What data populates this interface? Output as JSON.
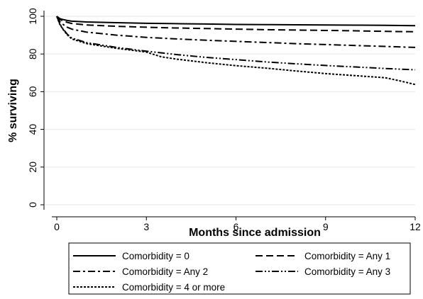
{
  "chart_data": {
    "type": "line",
    "title": "",
    "xlabel": "Months since admission",
    "ylabel": "% surviving",
    "xlim": [
      0,
      12
    ],
    "ylim": [
      0,
      100
    ],
    "xticks": [
      0,
      3,
      6,
      9,
      12
    ],
    "yticks": [
      0,
      20,
      40,
      60,
      80,
      100
    ],
    "grid": "horizontal",
    "legend_position": "bottom",
    "series": [
      {
        "name": "Comorbidity = 0",
        "dash": "solid",
        "x": [
          0,
          0.1,
          0.2,
          0.35,
          0.5,
          1,
          2,
          3,
          4,
          5,
          6,
          7,
          8,
          9,
          10,
          11,
          12
        ],
        "y": [
          100,
          98.8,
          98.3,
          97.8,
          97.4,
          97,
          96.6,
          96.3,
          96.1,
          95.9,
          95.7,
          95.6,
          95.5,
          95.4,
          95.3,
          95.2,
          95
        ]
      },
      {
        "name": "Comorbidity = Any 1",
        "dash": "dash",
        "x": [
          0,
          0.1,
          0.2,
          0.35,
          0.5,
          1,
          2,
          3,
          4,
          5,
          6,
          7,
          8,
          9,
          10,
          11,
          12
        ],
        "y": [
          100,
          98.4,
          97.6,
          96.8,
          96.2,
          95.4,
          94.7,
          94.2,
          93.8,
          93.5,
          93.2,
          92.9,
          92.7,
          92.5,
          92.3,
          92,
          91.8
        ]
      },
      {
        "name": "Comorbidity = Any 2",
        "dash": "dashdot",
        "x": [
          0,
          0.1,
          0.2,
          0.35,
          0.5,
          1,
          2,
          3,
          4,
          5,
          6,
          7,
          8,
          9,
          10,
          11,
          12
        ],
        "y": [
          100,
          97.2,
          95.8,
          94.2,
          93.2,
          91.6,
          90,
          88.8,
          88,
          87.3,
          86.7,
          86.1,
          85.5,
          85,
          84.5,
          84,
          83.5
        ]
      },
      {
        "name": "Comorbidity = Any 3",
        "dash": "dashdotdot",
        "x": [
          0,
          0.1,
          0.2,
          0.35,
          0.5,
          1,
          2,
          3,
          4,
          5,
          6,
          7,
          8,
          9,
          10,
          11,
          12
        ],
        "y": [
          100,
          96,
          93.5,
          90.5,
          88.5,
          86,
          83.5,
          81.5,
          79.7,
          78.2,
          77,
          75.8,
          74.8,
          73.9,
          73.1,
          72.3,
          71.6
        ]
      },
      {
        "name": "Comorbidity = 4 or more",
        "dash": "dot",
        "x": [
          0,
          0.1,
          0.2,
          0.35,
          0.5,
          1,
          2,
          3,
          3.5,
          4,
          5,
          6,
          7,
          8,
          9,
          10,
          11,
          11.5,
          12
        ],
        "y": [
          100,
          95.8,
          93.2,
          90.2,
          88,
          85.5,
          83,
          81,
          78.5,
          77.3,
          75.4,
          73.8,
          72.5,
          71,
          69.6,
          68.5,
          67.4,
          65.7,
          63.8
        ]
      }
    ]
  }
}
